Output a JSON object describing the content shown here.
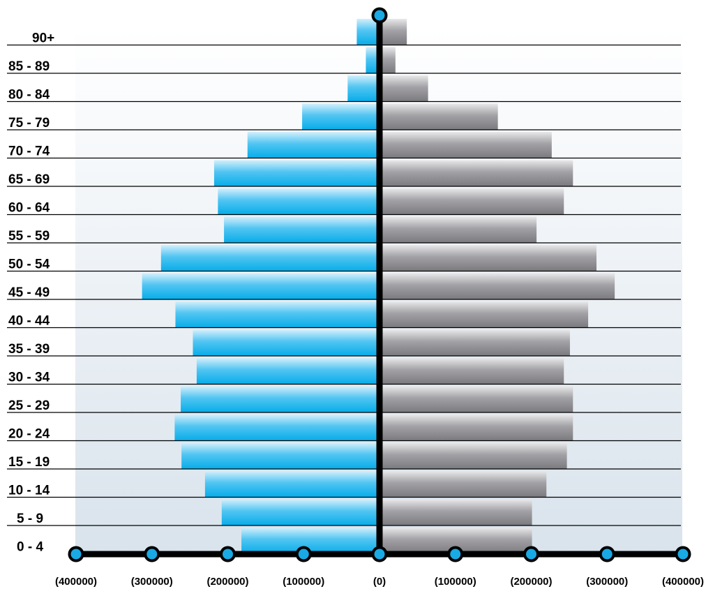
{
  "chart_data": {
    "type": "bar",
    "orientation": "horizontal-diverging",
    "categories": [
      "90+",
      "85 - 89",
      "80 - 84",
      "75 - 79",
      "70 - 74",
      "65 - 69",
      "60 - 64",
      "55 - 59",
      "50 - 54",
      "45 - 49",
      "40 - 44",
      "35 - 39",
      "30 - 34",
      "25 - 29",
      "20 - 24",
      "15 - 19",
      "10 - 14",
      "5 - 9",
      "0 - 4"
    ],
    "series": [
      {
        "side": "left",
        "color": "#14b0ea",
        "values": [
          30000,
          18000,
          42000,
          102000,
          174000,
          218000,
          213000,
          205000,
          288000,
          313000,
          269000,
          246000,
          241000,
          262000,
          270000,
          261000,
          230000,
          208000,
          182000
        ]
      },
      {
        "side": "right",
        "color": "#8a898d",
        "values": [
          36000,
          21000,
          64000,
          156000,
          227000,
          255000,
          243000,
          207000,
          286000,
          310000,
          275000,
          251000,
          243000,
          255000,
          255000,
          247000,
          220000,
          201000,
          201000
        ]
      }
    ],
    "xlim": [
      -400000,
      400000
    ],
    "x_ticks": [
      -400000,
      -300000,
      -200000,
      -100000,
      0,
      100000,
      200000,
      300000,
      400000
    ],
    "tick_labels": [
      "(400000)",
      "(300000)",
      "(200000)",
      "(100000)",
      "(0)",
      "(100000)",
      "(200000)",
      "(300000)",
      "(400000)"
    ],
    "grid": true,
    "legend": false
  }
}
